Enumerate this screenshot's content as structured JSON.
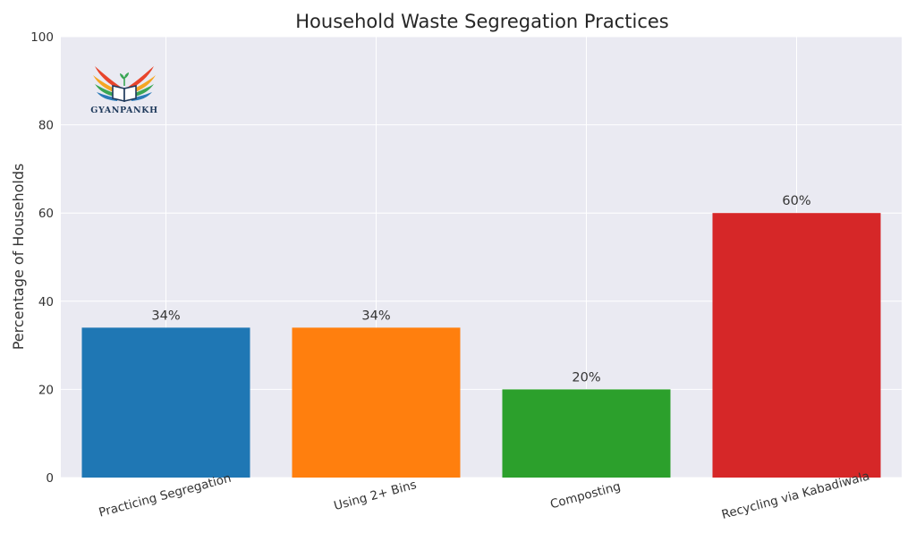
{
  "chart_data": {
    "type": "bar",
    "title": "Household Waste Segregation Practices",
    "xlabel": "",
    "ylabel": "Percentage of Households",
    "categories": [
      "Practicing Segregation",
      "Using 2+ Bins",
      "Composting",
      "Recycling via Kabadiwala"
    ],
    "values": [
      34,
      34,
      20,
      60
    ],
    "value_labels": [
      "34%",
      "34%",
      "20%",
      "60%"
    ],
    "bar_colors": [
      "#1f77b4",
      "#ff7f0e",
      "#2ca02c",
      "#d62728"
    ],
    "ylim": [
      0,
      100
    ],
    "yticks": [
      0,
      20,
      40,
      60,
      80,
      100
    ],
    "grid": true,
    "background": "#eaeaf2",
    "grid_color": "#ffffff",
    "xtick_rotation_deg": 15
  },
  "logo": {
    "text": "GYANPANKH",
    "icon": "open-book-wings-icon"
  }
}
